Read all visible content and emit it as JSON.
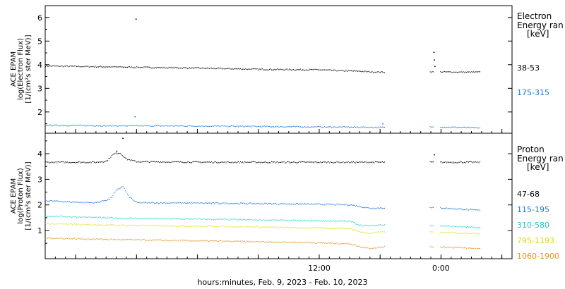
{
  "footer_label": "hours:minutes, Feb.  9, 2023 - Feb. 10, 2023",
  "chart_data": [
    {
      "type": "scatter",
      "panel": "electron",
      "ylabel_lines": [
        "ACE EPAM",
        "log(Electron Flux)",
        "[1/(cm²s ster MeV)]"
      ],
      "ylim": [
        1.1,
        6.5
      ],
      "yticks": [
        2,
        3,
        4,
        5,
        6
      ],
      "xlim": [
        -27,
        19
      ],
      "xtick_labels": [
        {
          "x": 0,
          "label": "12:00"
        },
        {
          "x": 12,
          "label": "0:00"
        }
      ],
      "legend_title": [
        "Electron",
        "Energy ran"
      ],
      "legend_unit": "[keV]",
      "gaps": [
        [
          6.5,
          10.8
        ],
        [
          11.3,
          11.9
        ]
      ],
      "x_end": 15.9,
      "series": [
        {
          "name": "38-53",
          "color": "#000000",
          "points": [
            [
              -27,
              3.96
            ],
            [
              -20,
              3.92
            ],
            [
              -12,
              3.87
            ],
            [
              -6,
              3.82
            ],
            [
              0,
              3.8
            ],
            [
              2,
              3.76
            ],
            [
              4,
              3.74
            ],
            [
              5,
              3.71
            ],
            [
              6.4,
              3.7
            ],
            [
              11.9,
              3.71
            ],
            [
              14,
              3.7
            ],
            [
              15.9,
              3.7
            ]
          ],
          "extras": [
            [
              -18.1,
              5.95
            ],
            [
              11.25,
              4.55
            ],
            [
              11.3,
              4.22
            ],
            [
              11.35,
              3.95
            ]
          ]
        },
        {
          "name": "175-315",
          "color": "#1a73d9",
          "points": [
            [
              -27,
              1.45
            ],
            [
              -20,
              1.43
            ],
            [
              -12,
              1.42
            ],
            [
              -6,
              1.4
            ],
            [
              0,
              1.38
            ],
            [
              4,
              1.37
            ],
            [
              6.4,
              1.36
            ],
            [
              11.9,
              1.38
            ],
            [
              15.9,
              1.34
            ]
          ],
          "extras": [
            [
              -18.2,
              1.82
            ],
            [
              6.2,
              1.52
            ]
          ]
        }
      ]
    },
    {
      "type": "scatter",
      "panel": "proton",
      "ylabel_lines": [
        "ACE EPAM",
        "log(Proton Flux)",
        "[1/(cm²s ster MeV)]"
      ],
      "ylim": [
        -0.1,
        4.8
      ],
      "yticks": [
        1,
        2,
        3,
        4
      ],
      "xlim": [
        -27,
        19
      ],
      "xtick_labels": [
        {
          "x": 0,
          "label": "12:00"
        },
        {
          "x": 12,
          "label": "0:00"
        }
      ],
      "legend_title": [
        "Proton",
        "Energy ran"
      ],
      "legend_unit": "[keV]",
      "gaps": [
        [
          6.5,
          10.8
        ],
        [
          11.3,
          11.9
        ]
      ],
      "x_end": 15.9,
      "series": [
        {
          "name": "47-68",
          "color": "#000000",
          "points": [
            [
              -27,
              3.68
            ],
            [
              -22,
              3.68
            ],
            [
              -21,
              3.72
            ],
            [
              -20.3,
              4.0
            ],
            [
              -19.7,
              4.05
            ],
            [
              -19,
              3.8
            ],
            [
              -18,
              3.7
            ],
            [
              -10,
              3.68
            ],
            [
              0,
              3.68
            ],
            [
              6.4,
              3.68
            ],
            [
              11.9,
              3.68
            ],
            [
              15.9,
              3.68
            ]
          ],
          "extras": [
            [
              -19.4,
              4.62
            ],
            [
              11.3,
              3.98
            ],
            [
              -20.0,
              4.12
            ]
          ]
        },
        {
          "name": "115-195",
          "color": "#1a73d9",
          "points": [
            [
              -27,
              2.18
            ],
            [
              -24,
              2.12
            ],
            [
              -22,
              2.1
            ],
            [
              -20.6,
              2.25
            ],
            [
              -20.1,
              2.55
            ],
            [
              -19.4,
              2.75
            ],
            [
              -18.8,
              2.35
            ],
            [
              -18,
              2.1
            ],
            [
              -10,
              2.08
            ],
            [
              -2,
              2.05
            ],
            [
              3,
              2.02
            ],
            [
              5,
              1.88
            ],
            [
              8,
              1.93
            ],
            [
              10,
              1.9
            ],
            [
              11.9,
              1.9
            ],
            [
              15.9,
              1.8
            ]
          ],
          "extras": []
        },
        {
          "name": "310-580",
          "color": "#22d0d0",
          "points": [
            [
              -27,
              1.58
            ],
            [
              -20,
              1.5
            ],
            [
              -10,
              1.45
            ],
            [
              -2,
              1.4
            ],
            [
              3,
              1.38
            ],
            [
              4,
              1.22
            ],
            [
              5,
              1.2
            ],
            [
              6.4,
              1.25
            ],
            [
              11.9,
              1.2
            ],
            [
              15.9,
              1.12
            ]
          ],
          "extras": []
        },
        {
          "name": "795-1193",
          "color": "#e0e020",
          "points": [
            [
              -27,
              1.28
            ],
            [
              -20,
              1.22
            ],
            [
              -10,
              1.18
            ],
            [
              -2,
              1.12
            ],
            [
              3,
              1.1
            ],
            [
              4,
              0.95
            ],
            [
              5,
              0.92
            ],
            [
              6.4,
              0.98
            ],
            [
              11.9,
              0.95
            ],
            [
              15.9,
              0.88
            ]
          ],
          "extras": []
        },
        {
          "name": "1060-1900",
          "color": "#e89020",
          "points": [
            [
              -27,
              0.72
            ],
            [
              -20,
              0.66
            ],
            [
              -10,
              0.6
            ],
            [
              -2,
              0.55
            ],
            [
              3,
              0.5
            ],
            [
              4,
              0.38
            ],
            [
              5,
              0.32
            ],
            [
              6.4,
              0.38
            ],
            [
              11.9,
              0.38
            ],
            [
              15.9,
              0.3
            ]
          ],
          "extras": []
        }
      ]
    }
  ]
}
